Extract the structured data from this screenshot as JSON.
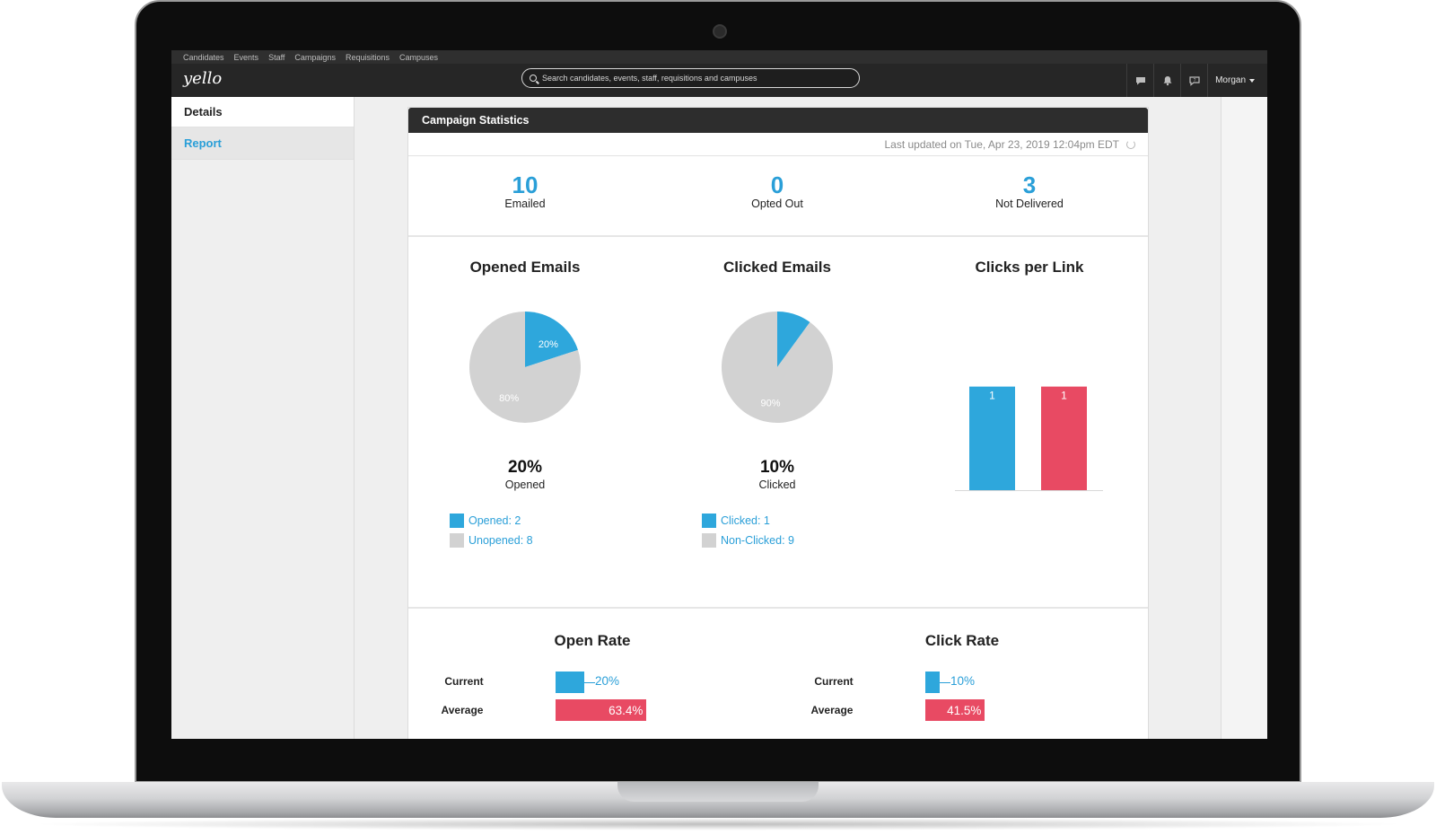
{
  "nav": {
    "items": [
      "Candidates",
      "Events",
      "Staff",
      "Campaigns",
      "Requisitions",
      "Campuses"
    ]
  },
  "header": {
    "logo": "yello",
    "search_placeholder": "Search candidates, events, staff, requisitions and campuses",
    "icons": [
      "chat-icon",
      "bell-icon",
      "help-icon"
    ],
    "user": "Morgan"
  },
  "sidebar": {
    "details": "Details",
    "report": "Report"
  },
  "panel": {
    "title": "Campaign Statistics",
    "last_updated": "Last updated on Tue, Apr 23, 2019 12:04pm EDT",
    "stats": [
      {
        "value": "10",
        "label": "Emailed"
      },
      {
        "value": "0",
        "label": "Opted Out"
      },
      {
        "value": "3",
        "label": "Not Delivered"
      }
    ]
  },
  "colors": {
    "blue": "#2ea7dc",
    "red": "#e84a63",
    "grey": "#d2d2d2"
  },
  "chart_data": [
    {
      "type": "pie",
      "title": "Opened Emails",
      "slices": [
        {
          "name": "Opened",
          "value": 2,
          "label": "20%"
        },
        {
          "name": "Unopened",
          "value": 8,
          "label": "80%"
        }
      ],
      "summary_value": "20%",
      "summary_label": "Opened",
      "legend": [
        "Opened: 2",
        "Unopened: 8"
      ]
    },
    {
      "type": "pie",
      "title": "Clicked Emails",
      "slices": [
        {
          "name": "Clicked",
          "value": 1,
          "label": ""
        },
        {
          "name": "Non-Clicked",
          "value": 9,
          "label": "90%"
        }
      ],
      "summary_value": "10%",
      "summary_label": "Clicked",
      "legend": [
        "Clicked: 1",
        "Non-Clicked: 9"
      ]
    },
    {
      "type": "bar",
      "title": "Clicks per Link",
      "values": [
        1,
        1
      ],
      "value_labels": [
        "1",
        "1"
      ],
      "ylim": [
        0,
        1.3
      ]
    },
    {
      "type": "bar",
      "title": "Open Rate",
      "categories": [
        "Current",
        "Average"
      ],
      "values": [
        20,
        63.4
      ],
      "value_labels": [
        "20%",
        "63.4%"
      ],
      "xlim": [
        0,
        100
      ]
    },
    {
      "type": "bar",
      "title": "Click Rate",
      "categories": [
        "Current",
        "Average"
      ],
      "values": [
        10,
        41.5
      ],
      "value_labels": [
        "10%",
        "41.5%"
      ],
      "xlim": [
        0,
        100
      ]
    }
  ]
}
